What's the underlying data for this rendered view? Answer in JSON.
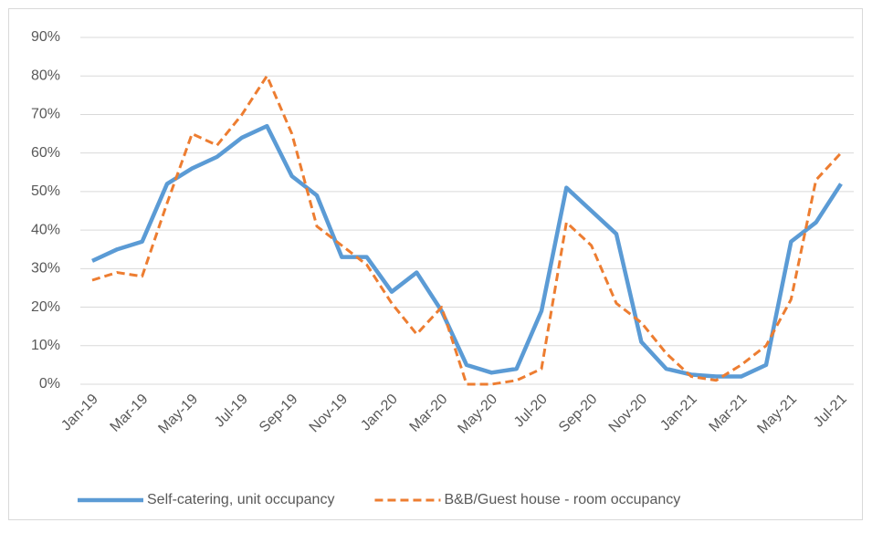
{
  "chart_data": {
    "type": "line",
    "categories": [
      "Jan-19",
      null,
      "Mar-19",
      null,
      "May-19",
      null,
      "Jul-19",
      null,
      "Sep-19",
      null,
      "Nov-19",
      null,
      "Jan-20",
      null,
      "Mar-20",
      null,
      "May-20",
      null,
      "Jul-20",
      null,
      "Sep-20",
      null,
      "Nov-20",
      null,
      "Jan-21",
      null,
      "Mar-21",
      null,
      "May-21",
      null,
      "Jul-21"
    ],
    "series": [
      {
        "name": "Self-catering, unit occupancy",
        "color": "#5b9bd5",
        "dash": "solid",
        "values": [
          32,
          35,
          37,
          52,
          56,
          59,
          64,
          67,
          54,
          49,
          33,
          33,
          24,
          29,
          19,
          5,
          3,
          4,
          19,
          51,
          45,
          39,
          11,
          4,
          2.5,
          2,
          2,
          5,
          37,
          42,
          52
        ]
      },
      {
        "name": "B&B/Guest house - room occupancy",
        "color": "#ed7d31",
        "dash": "dashed",
        "values": [
          27,
          29,
          28,
          47,
          65,
          62,
          70,
          80,
          65,
          41,
          36,
          31,
          21,
          13,
          20,
          0,
          0,
          1,
          4,
          42,
          36,
          21,
          16,
          8,
          2,
          1,
          5,
          10,
          22,
          53,
          60
        ]
      }
    ],
    "ylim": [
      0,
      90
    ],
    "yticks": [
      {
        "value": 0,
        "label": "0%"
      },
      {
        "value": 10,
        "label": "10%"
      },
      {
        "value": 20,
        "label": "20%"
      },
      {
        "value": 30,
        "label": "30%"
      },
      {
        "value": 40,
        "label": "40%"
      },
      {
        "value": 50,
        "label": "50%"
      },
      {
        "value": 60,
        "label": "60%"
      },
      {
        "value": 70,
        "label": "70%"
      },
      {
        "value": 80,
        "label": "80%"
      },
      {
        "value": 90,
        "label": "90%"
      }
    ],
    "grid": true
  }
}
